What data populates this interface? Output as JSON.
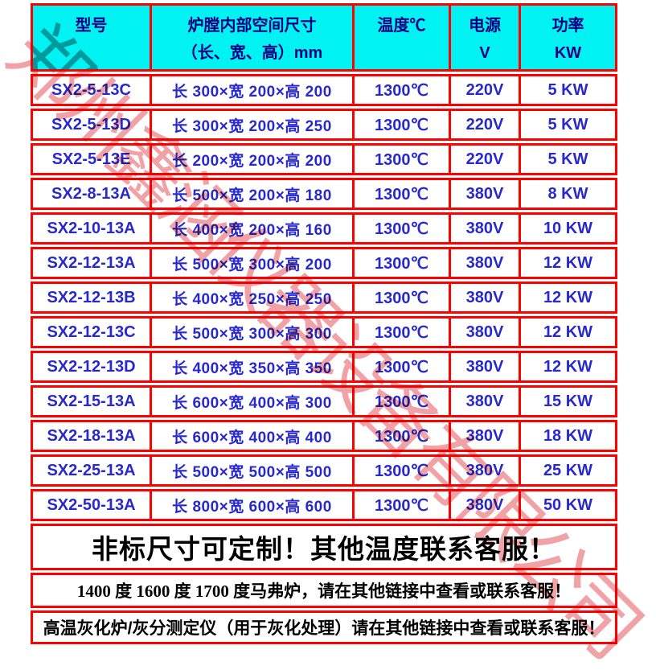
{
  "table": {
    "headers": [
      {
        "line1": "型号",
        "line2": ""
      },
      {
        "line1": "炉膛内部空间尺寸",
        "line2": "（长、宽、高）mm"
      },
      {
        "line1": "温度℃",
        "line2": ""
      },
      {
        "line1": "电源",
        "line2": "V"
      },
      {
        "line1": "功率",
        "line2": "KW"
      }
    ],
    "rows": [
      {
        "model": "SX2-5-13C",
        "dims": "长 300×宽 200×高 200",
        "temp": "1300℃",
        "voltage": "220V",
        "power": "5 KW"
      },
      {
        "model": "SX2-5-13D",
        "dims": "长 300×宽 200×高 250",
        "temp": "1300℃",
        "voltage": "220V",
        "power": "5 KW"
      },
      {
        "model": "SX2-5-13E",
        "dims": "长 200×宽 200×高 200",
        "temp": "1300℃",
        "voltage": "220V",
        "power": "5 KW"
      },
      {
        "model": "SX2-8-13A",
        "dims": "长 500×宽 200×高 180",
        "temp": "1300℃",
        "voltage": "380V",
        "power": "8 KW"
      },
      {
        "model": "SX2-10-13A",
        "dims": "长 400×宽 200×高 160",
        "temp": "1300℃",
        "voltage": "380V",
        "power": "10 KW"
      },
      {
        "model": "SX2-12-13A",
        "dims": "长 500×宽 300×高 200",
        "temp": "1300℃",
        "voltage": "380V",
        "power": "12 KW"
      },
      {
        "model": "SX2-12-13B",
        "dims": "长 400×宽 250×高 250",
        "temp": "1300℃",
        "voltage": "380V",
        "power": "12 KW"
      },
      {
        "model": "SX2-12-13C",
        "dims": "长 500×宽 300×高 300",
        "temp": "1300℃",
        "voltage": "380V",
        "power": "12 KW"
      },
      {
        "model": "SX2-12-13D",
        "dims": "长 400×宽 350×高 350",
        "temp": "1300℃",
        "voltage": "380V",
        "power": "12 KW"
      },
      {
        "model": "SX2-15-13A",
        "dims": "长 600×宽 400×高 300",
        "temp": "1300℃",
        "voltage": "380V",
        "power": "15 KW"
      },
      {
        "model": "SX2-18-13A",
        "dims": "长 600×宽 400×高 400",
        "temp": "1300℃",
        "voltage": "380V",
        "power": "18 KW"
      },
      {
        "model": "SX2-25-13A",
        "dims": "长 500×宽 500×高 500",
        "temp": "1300℃",
        "voltage": "380V",
        "power": "25 KW"
      },
      {
        "model": "SX2-50-13A",
        "dims": "长 800×宽 600×高 600",
        "temp": "1300℃",
        "voltage": "380V",
        "power": "50 KW"
      }
    ]
  },
  "notes": {
    "big": "非标尺寸可定制！其他温度联系客服！",
    "mid": "1400 度 1600 度 1700 度马弗炉，请在其他链接中查看或联系客服！",
    "low": "高温灰化炉/灰分测定仪（用于灰化处理）请在其他链接中查看或联系客服！"
  },
  "watermark": {
    "text": "郑州鑫涵仪器设备有限公司"
  },
  "colors": {
    "border": "#FF0000",
    "header_bg": "#00F2F2",
    "header_text": "#000080",
    "cell_text": "#2828CF",
    "note_text": "#000000",
    "watermark": "#E6555F"
  }
}
